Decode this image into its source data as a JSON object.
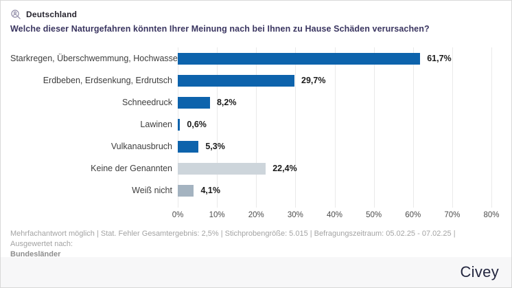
{
  "header": {
    "region_label": "Deutschland",
    "title": "Welche dieser Naturgefahren könnten Ihrer Meinung nach bei Ihnen zu Hause Schäden verursachen?"
  },
  "chart_data": {
    "type": "bar",
    "orientation": "horizontal",
    "categories": [
      "Starkregen, Überschwemmung, Hochwasser",
      "Erdbeben, Erdsenkung, Erdrutsch",
      "Schneedruck",
      "Lawinen",
      "Vulkanausbruch",
      "Keine der Genannten",
      "Weiß nicht"
    ],
    "values": [
      61.7,
      29.7,
      8.2,
      0.6,
      5.3,
      22.4,
      4.1
    ],
    "value_labels": [
      "61,7%",
      "29,7%",
      "8,2%",
      "0,6%",
      "5,3%",
      "22,4%",
      "4,1%"
    ],
    "bar_colors": [
      "#0d63ac",
      "#0d63ac",
      "#0d63ac",
      "#0d63ac",
      "#0d63ac",
      "#cdd5db",
      "#a4b3c0"
    ],
    "xlim": [
      0,
      80
    ],
    "x_tick_labels": [
      "0%",
      "10%",
      "20%",
      "30%",
      "40%",
      "50%",
      "60%",
      "70%",
      "80%"
    ],
    "grid": true,
    "legend": false,
    "title": "Welche dieser Naturgefahren könnten Ihrer Meinung nach bei Ihnen zu Hause Schäden verursachen?",
    "xlabel": "",
    "ylabel": ""
  },
  "footer": {
    "line1": "Mehrfachantwort möglich | Stat. Fehler Gesamtergebnis: 2,5% | Stichprobengröße: 5.015 | Befragungszeitraum: 05.02.25 - 07.02.25 | Ausgewertet nach:",
    "line2_bold": "Bundesländer"
  },
  "branding": {
    "logo_text": "Civey"
  },
  "colors": {
    "bar_blue": "#0d63ac",
    "bar_light_gray": "#cdd5db",
    "bar_gray": "#a4b3c0",
    "grid_line": "#e9e9e9",
    "title_text": "#3a3560",
    "brand_text": "#23263f"
  }
}
